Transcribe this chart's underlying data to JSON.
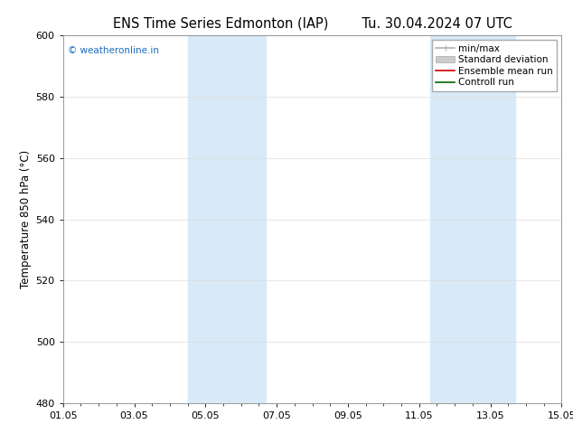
{
  "title_left": "ENS Time Series Edmonton (IAP)",
  "title_right": "Tu. 30.04.2024 07 UTC",
  "ylabel": "Temperature 850 hPa (°C)",
  "ylim": [
    480,
    600
  ],
  "yticks": [
    480,
    500,
    520,
    540,
    560,
    580,
    600
  ],
  "xtick_labels": [
    "01.05",
    "03.05",
    "05.05",
    "07.05",
    "09.05",
    "11.05",
    "13.05",
    "15.05"
  ],
  "xtick_positions": [
    0,
    2,
    4,
    6,
    8,
    10,
    12,
    14
  ],
  "xlim": [
    0,
    14
  ],
  "shaded_bands": [
    {
      "x_start": 3.5,
      "x_end": 5.7,
      "color": "#d8eaf8"
    },
    {
      "x_start": 10.3,
      "x_end": 12.7,
      "color": "#d8eaf8"
    }
  ],
  "watermark": "© weatheronline.in",
  "watermark_color": "#1a6dbf",
  "legend_entries": [
    {
      "label": "min/max",
      "color": "#b0b0b0",
      "lw": 1.2
    },
    {
      "label": "Standard deviation",
      "color": "#cccccc",
      "lw": 6
    },
    {
      "label": "Ensemble mean run",
      "color": "#cc0000",
      "lw": 1.2
    },
    {
      "label": "Controll run",
      "color": "#006600",
      "lw": 1.2
    }
  ],
  "background_color": "#ffffff",
  "plot_bg_color": "#ffffff",
  "grid_color": "#dddddd",
  "title_fontsize": 10.5,
  "ylabel_fontsize": 8.5,
  "tick_fontsize": 8,
  "legend_fontsize": 7.5
}
